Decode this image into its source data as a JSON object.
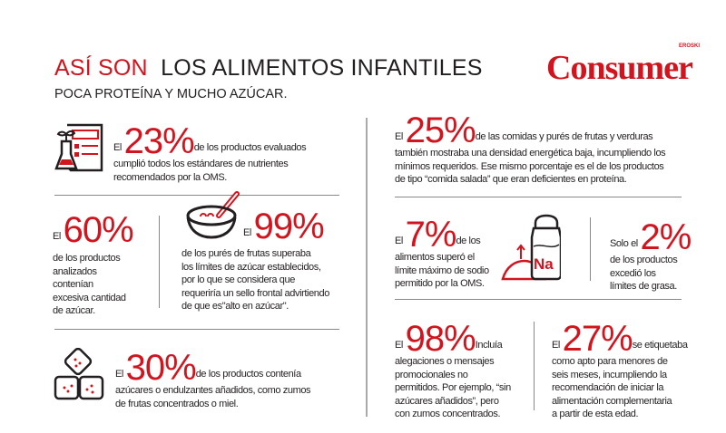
{
  "header": {
    "title_red": "ASÍ SON",
    "title_black": "LOS  ALIMENTOS INFANTILES",
    "subtitle": "POCA PROTEÍNA Y MUCHO AZÚCAR.",
    "logo": "Consumer",
    "logo_small": "EROSKI"
  },
  "colors": {
    "accent": "#d2141e",
    "text": "#231f20"
  },
  "stats": {
    "s23": {
      "pre": "El",
      "value": "23%",
      "text": "de los productos evaluados",
      "lines": [
        "cumplió todos los estándares  de nutrientes",
        "recomendados por la OMS."
      ]
    },
    "s60": {
      "pre": "El",
      "value": "60%",
      "lines": [
        "de los productos",
        "analizados",
        "contenían",
        "excesiva cantidad",
        "de azúcar."
      ]
    },
    "s99": {
      "pre": "El",
      "value": "99%",
      "lines": [
        "de los purés de frutas  superaba",
        "los límites de azúcar establecidos,",
        "por lo que se considera que",
        "requeriría un sello frontal advirtiendo",
        "de que es\"alto en azúcar\"."
      ]
    },
    "s30": {
      "pre": "El",
      "value": "30%",
      "text": "de los productos contenía",
      "lines": [
        "azúcares o endulzantes añadidos,  como zumos",
        "de frutas concentrados o miel."
      ]
    },
    "s25": {
      "pre": "El",
      "value": "25%",
      "text": "de las comidas y purés de frutas y verduras",
      "lines": [
        "también mostraba una densidad energética baja, incumpliendo los",
        "mínimos requeridos. Ese mismo porcentaje es el de los productos",
        "de tipo “comida salada” que eran deficientes en proteína."
      ]
    },
    "s7": {
      "pre": "El",
      "value": "7%",
      "text": "de los",
      "lines": [
        "alimentos superó el",
        "límite máximo de sodio",
        "permitido por la OMS."
      ]
    },
    "s2": {
      "pre": "Solo el",
      "value": "2%",
      "lines": [
        "de los productos",
        "excedió los",
        "límites de grasa."
      ]
    },
    "s98": {
      "pre": "El",
      "value": "98%",
      "text": "Incluía",
      "lines": [
        "alegaciones o mensajes",
        "promocionales no",
        "permitidos. Por ejemplo, “sin",
        "azúcares añadidos”, pero",
        "con zumos concentrados."
      ]
    },
    "s27": {
      "pre": "El",
      "value": "27%",
      "text": "se etiquetaba",
      "lines": [
        "como apto para menores de",
        "seis meses,  incumpliendo la",
        "recomendación de iniciar la",
        "alimentación complementaria",
        "a partir de esta edad."
      ]
    }
  },
  "icons": {
    "salt_label": "Na"
  }
}
